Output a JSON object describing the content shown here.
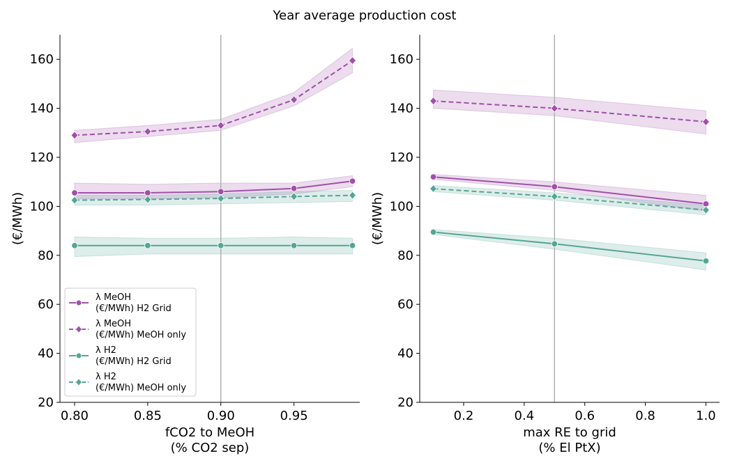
{
  "figure": {
    "title": "Year average production cost"
  },
  "colors": {
    "meoh": "#a050a8",
    "h2": "#55a595",
    "vline": "#b0b0b0"
  },
  "legend": {
    "placement": "lower-left (left panel)",
    "entries": [
      {
        "line1": "λ MeOH",
        "line2": "(€/MWh) H2 Grid",
        "color": "#a050a8",
        "dash": false,
        "marker": "circle"
      },
      {
        "line1": "λ MeOH",
        "line2": "(€/MWh) MeOH only",
        "color": "#a050a8",
        "dash": true,
        "marker": "diamond"
      },
      {
        "line1": "λ H2",
        "line2": "(€/MWh) H2 Grid",
        "color": "#55a595",
        "dash": false,
        "marker": "circle"
      },
      {
        "line1": "λ H2",
        "line2": "(€/MWh) MeOH only",
        "color": "#55a595",
        "dash": true,
        "marker": "diamond"
      }
    ]
  },
  "chart_data": [
    {
      "type": "line",
      "xlabel": [
        "fCO2 to MeOH",
        "(% CO2 sep)"
      ],
      "ylabel": "(€/MWh)",
      "xlim": [
        0.79,
        0.995
      ],
      "ylim": [
        20,
        170
      ],
      "xticks": [
        0.8,
        0.85,
        0.9,
        0.95
      ],
      "xtick_labels": [
        "0.80",
        "0.85",
        "0.90",
        "0.95"
      ],
      "yticks": [
        20,
        40,
        60,
        80,
        100,
        120,
        140,
        160
      ],
      "vline": 0.9,
      "grid": false,
      "x": [
        0.8,
        0.85,
        0.9,
        0.95,
        0.99
      ],
      "series": [
        {
          "name": "λ MeOH (€/MWh) H2 Grid",
          "color": "#a050a8",
          "dash": false,
          "marker": "circle",
          "values": [
            105.5,
            105.5,
            106,
            107.3,
            110.3
          ],
          "lower": [
            103,
            103,
            103.5,
            105,
            108
          ],
          "upper": [
            109.5,
            109,
            109.5,
            109.5,
            112.5
          ]
        },
        {
          "name": "λ MeOH (€/MWh) MeOH only",
          "color": "#a050a8",
          "dash": true,
          "marker": "diamond",
          "values": [
            129,
            130.5,
            133,
            143.5,
            159.5
          ],
          "lower": [
            126,
            128.5,
            131,
            141,
            154.5
          ],
          "upper": [
            131,
            133,
            135.5,
            146.5,
            164.5
          ]
        },
        {
          "name": "λ H2 (€/MWh) H2 Grid",
          "color": "#55a595",
          "dash": false,
          "marker": "circle",
          "values": [
            84,
            84,
            84,
            84,
            84
          ],
          "lower": [
            79.5,
            80.5,
            80.5,
            80.5,
            80.5
          ],
          "upper": [
            87.5,
            87,
            87,
            87.5,
            87
          ]
        },
        {
          "name": "λ H2 (€/MWh) MeOH only",
          "color": "#55a595",
          "dash": true,
          "marker": "diamond",
          "values": [
            102.5,
            102.8,
            103.2,
            104,
            104.5
          ],
          "lower": [
            100.5,
            100.5,
            101,
            101.5,
            102
          ],
          "upper": [
            104.5,
            104.5,
            105,
            106,
            106.5
          ]
        }
      ]
    },
    {
      "type": "line",
      "xlabel": [
        "max RE to grid",
        "(% El PtX)"
      ],
      "ylabel": "(€/MWh)",
      "xlim": [
        0.055,
        1.045
      ],
      "ylim": [
        20,
        170
      ],
      "xticks": [
        0.2,
        0.4,
        0.6,
        0.8,
        1.0
      ],
      "xtick_labels": [
        "0.2",
        "0.4",
        "0.6",
        "0.8",
        "1.0"
      ],
      "yticks": [
        20,
        40,
        60,
        80,
        100,
        120,
        140,
        160
      ],
      "vline": 0.5,
      "grid": false,
      "x": [
        0.1,
        0.5,
        1.0
      ],
      "series": [
        {
          "name": "λ MeOH (€/MWh) H2 Grid",
          "color": "#a050a8",
          "dash": false,
          "marker": "circle",
          "values": [
            112,
            108,
            101
          ],
          "lower": [
            111,
            106.5,
            98
          ],
          "upper": [
            113,
            110,
            104.5
          ]
        },
        {
          "name": "λ MeOH (€/MWh) MeOH only",
          "color": "#a050a8",
          "dash": true,
          "marker": "diamond",
          "values": [
            143,
            140,
            134.5
          ],
          "lower": [
            140,
            137,
            129.5
          ],
          "upper": [
            147.5,
            144.5,
            139
          ]
        },
        {
          "name": "λ H2 (€/MWh) H2 Grid",
          "color": "#55a595",
          "dash": false,
          "marker": "circle",
          "values": [
            89.5,
            84.7,
            77.7
          ],
          "lower": [
            88.5,
            82.5,
            74
          ],
          "upper": [
            90.5,
            87,
            81
          ]
        },
        {
          "name": "λ H2 (€/MWh) MeOH only",
          "color": "#55a595",
          "dash": true,
          "marker": "diamond",
          "values": [
            107.2,
            104,
            98.5
          ],
          "lower": [
            106,
            102.5,
            96.5
          ],
          "upper": [
            108.5,
            105.5,
            100.5
          ]
        }
      ]
    }
  ]
}
